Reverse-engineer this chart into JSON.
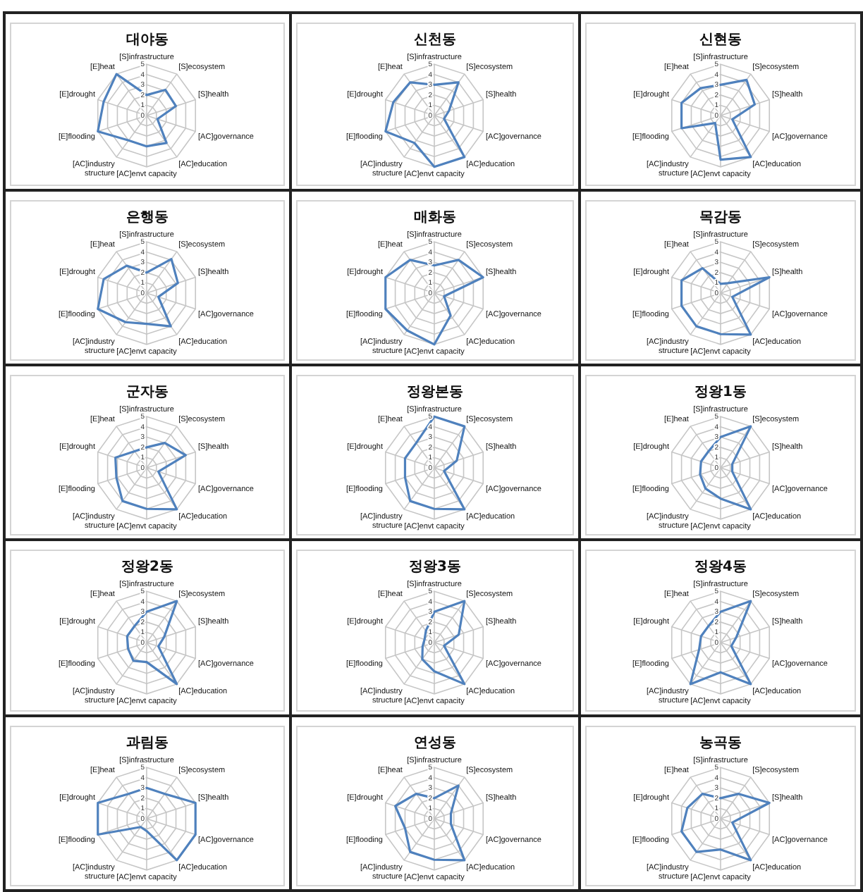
{
  "chart_data": [
    {
      "type": "radar",
      "title": "대야동",
      "categories": [
        "[S]infrastructure",
        "[S]ecosystem",
        "[S]health",
        "[AC]governance",
        "[AC]education",
        "[AC]envt capacity",
        "[AC]industry structure",
        "[E]flooding",
        "[E]drought",
        "[E]heat"
      ],
      "series": [
        {
          "color": "#4f81bd",
          "values": [
            2,
            3.1,
            3,
            1.1,
            3.3,
            3,
            3,
            5,
            4.4,
            5
          ]
        }
      ],
      "ylim": [
        0,
        5
      ],
      "yticks": [
        0,
        1,
        2,
        3,
        4,
        5
      ],
      "grid": true,
      "marker": "none"
    },
    {
      "type": "radar",
      "title": "신천동",
      "categories": [
        "[S]infrastructure",
        "[S]ecosystem",
        "[S]health",
        "[AC]governance",
        "[AC]education",
        "[AC]envt capacity",
        "[AC]industry structure",
        "[E]flooding",
        "[E]drought",
        "[E]heat"
      ],
      "series": [
        {
          "color": "#4f81bd",
          "values": [
            3,
            4,
            1.5,
            1,
            5,
            5,
            3.3,
            5,
            4.2,
            4
          ]
        }
      ],
      "ylim": [
        0,
        5
      ],
      "yticks": [
        0,
        1,
        2,
        3,
        4,
        5
      ],
      "grid": true,
      "marker": "none"
    },
    {
      "type": "radar",
      "title": "신현동",
      "categories": [
        "[S]infrastructure",
        "[S]ecosystem",
        "[S]health",
        "[AC]governance",
        "[AC]education",
        "[AC]envt capacity",
        "[AC]industry structure",
        "[E]flooding",
        "[E]drought",
        "[E]heat"
      ],
      "series": [
        {
          "color": "#4f81bd",
          "values": [
            3,
            4.3,
            3.5,
            1.2,
            5,
            4.3,
            0.9,
            4,
            4,
            3.3
          ]
        }
      ],
      "ylim": [
        0,
        5
      ],
      "yticks": [
        0,
        1,
        2,
        3,
        4,
        5
      ],
      "grid": true,
      "marker": "none"
    },
    {
      "type": "radar",
      "title": "은행동",
      "categories": [
        "[S]infrastructure",
        "[S]ecosystem",
        "[S]health",
        "[AC]governance",
        "[AC]education",
        "[AC]envt capacity",
        "[AC]industry structure",
        "[E]flooding",
        "[E]drought",
        "[E]heat"
      ],
      "series": [
        {
          "color": "#4f81bd",
          "values": [
            2,
            4.1,
            3.2,
            1.2,
            4,
            3,
            3.5,
            5,
            4.4,
            3.3
          ]
        }
      ],
      "ylim": [
        0,
        5
      ],
      "yticks": [
        0,
        1,
        2,
        3,
        4,
        5
      ],
      "grid": true,
      "marker": "none"
    },
    {
      "type": "radar",
      "title": "매화동",
      "categories": [
        "[S]infrastructure",
        "[S]ecosystem",
        "[S]health",
        "[AC]governance",
        "[AC]education",
        "[AC]envt capacity",
        "[AC]industry structure",
        "[E]flooding",
        "[E]drought",
        "[E]heat"
      ],
      "series": [
        {
          "color": "#4f81bd",
          "values": [
            2.7,
            4,
            5,
            1,
            2.7,
            5,
            4.5,
            5,
            5,
            4
          ]
        }
      ],
      "ylim": [
        0,
        5
      ],
      "yticks": [
        0,
        1,
        2,
        3,
        4,
        5
      ],
      "grid": true,
      "marker": "none"
    },
    {
      "type": "radar",
      "title": "목감동",
      "categories": [
        "[S]infrastructure",
        "[S]ecosystem",
        "[S]health",
        "[AC]governance",
        "[AC]education",
        "[AC]envt capacity",
        "[AC]industry structure",
        "[E]flooding",
        "[E]drought",
        "[E]heat"
      ],
      "series": [
        {
          "color": "#4f81bd",
          "values": [
            0.9,
            1.2,
            5,
            1.2,
            5,
            4,
            4,
            4,
            4,
            3
          ]
        }
      ],
      "ylim": [
        0,
        5
      ],
      "yticks": [
        0,
        1,
        2,
        3,
        4,
        5
      ],
      "grid": true,
      "marker": "none"
    },
    {
      "type": "radar",
      "title": "군자동",
      "categories": [
        "[S]infrastructure",
        "[S]ecosystem",
        "[S]health",
        "[AC]governance",
        "[AC]education",
        "[AC]envt capacity",
        "[AC]industry structure",
        "[E]flooding",
        "[E]drought",
        "[E]heat"
      ],
      "series": [
        {
          "color": "#4f81bd",
          "values": [
            2,
            3,
            4,
            1.2,
            5,
            4,
            4,
            3.1,
            3.2,
            2
          ]
        }
      ],
      "ylim": [
        0,
        5
      ],
      "yticks": [
        0,
        1,
        2,
        3,
        4,
        5
      ],
      "grid": true,
      "marker": "none"
    },
    {
      "type": "radar",
      "title": "정왕본동",
      "categories": [
        "[S]infrastructure",
        "[S]ecosystem",
        "[S]health",
        "[AC]governance",
        "[AC]education",
        "[AC]envt capacity",
        "[AC]industry structure",
        "[E]flooding",
        "[E]drought",
        "[E]heat"
      ],
      "series": [
        {
          "color": "#4f81bd",
          "values": [
            5,
            5,
            2.3,
            1,
            5,
            4,
            4,
            3,
            3,
            3
          ]
        }
      ],
      "ylim": [
        0,
        5
      ],
      "yticks": [
        0,
        1,
        2,
        3,
        4,
        5
      ],
      "grid": true,
      "marker": "none"
    },
    {
      "type": "radar",
      "title": "정왕1동",
      "categories": [
        "[S]infrastructure",
        "[S]ecosystem",
        "[S]health",
        "[AC]governance",
        "[AC]education",
        "[AC]envt capacity",
        "[AC]industry structure",
        "[E]flooding",
        "[E]drought",
        "[E]heat"
      ],
      "series": [
        {
          "color": "#4f81bd",
          "values": [
            3,
            5,
            1.2,
            1.2,
            5,
            3,
            2.5,
            2.1,
            2,
            2
          ]
        }
      ],
      "ylim": [
        0,
        5
      ],
      "yticks": [
        0,
        1,
        2,
        3,
        4,
        5
      ],
      "grid": true,
      "marker": "none"
    },
    {
      "type": "radar",
      "title": "정왕2동",
      "categories": [
        "[S]infrastructure",
        "[S]ecosystem",
        "[S]health",
        "[AC]governance",
        "[AC]education",
        "[AC]envt capacity",
        "[AC]industry structure",
        "[E]flooding",
        "[E]drought",
        "[E]heat"
      ],
      "series": [
        {
          "color": "#4f81bd",
          "values": [
            3,
            5,
            1.8,
            1.2,
            5,
            1.9,
            2.2,
            1.9,
            2,
            2
          ]
        }
      ],
      "ylim": [
        0,
        5
      ],
      "yticks": [
        0,
        1,
        2,
        3,
        4,
        5
      ],
      "grid": true,
      "marker": "none"
    },
    {
      "type": "radar",
      "title": "정왕3동",
      "categories": [
        "[S]infrastructure",
        "[S]ecosystem",
        "[S]health",
        "[AC]governance",
        "[AC]education",
        "[AC]envt capacity",
        "[AC]industry structure",
        "[E]flooding",
        "[E]drought",
        "[E]heat"
      ],
      "series": [
        {
          "color": "#4f81bd",
          "values": [
            3,
            5,
            2.5,
            1,
            5,
            2.8,
            2,
            1.2,
            1,
            1.4
          ]
        }
      ],
      "ylim": [
        0,
        5
      ],
      "yticks": [
        0,
        1,
        2,
        3,
        4,
        5
      ],
      "grid": true,
      "marker": "none"
    },
    {
      "type": "radar",
      "title": "정왕4동",
      "categories": [
        "[S]infrastructure",
        "[S]ecosystem",
        "[S]health",
        "[AC]governance",
        "[AC]education",
        "[AC]envt capacity",
        "[AC]industry structure",
        "[E]flooding",
        "[E]drought",
        "[E]heat"
      ],
      "series": [
        {
          "color": "#4f81bd",
          "values": [
            3,
            5,
            1.6,
            1.1,
            5,
            2.9,
            5,
            2.2,
            2,
            2
          ]
        }
      ],
      "ylim": [
        0,
        5
      ],
      "yticks": [
        0,
        1,
        2,
        3,
        4,
        5
      ],
      "grid": true,
      "marker": "none"
    },
    {
      "type": "radar",
      "title": "과림동",
      "categories": [
        "[S]infrastructure",
        "[S]ecosystem",
        "[S]health",
        "[AC]governance",
        "[AC]education",
        "[AC]envt capacity",
        "[AC]industry structure",
        "[E]flooding",
        "[E]drought",
        "[E]heat"
      ],
      "series": [
        {
          "color": "#4f81bd",
          "values": [
            3,
            3,
            5,
            5,
            5,
            1.2,
            1,
            5,
            5,
            3
          ]
        }
      ],
      "ylim": [
        0,
        5
      ],
      "yticks": [
        0,
        1,
        2,
        3,
        4,
        5
      ],
      "grid": true,
      "marker": "none"
    },
    {
      "type": "radar",
      "title": "연성동",
      "categories": [
        "[S]infrastructure",
        "[S]ecosystem",
        "[S]health",
        "[AC]governance",
        "[AC]education",
        "[AC]envt capacity",
        "[AC]industry structure",
        "[E]flooding",
        "[E]drought",
        "[E]heat"
      ],
      "series": [
        {
          "color": "#4f81bd",
          "values": [
            2,
            4,
            1.7,
            1.7,
            5,
            4,
            4,
            3,
            4,
            3
          ]
        }
      ],
      "ylim": [
        0,
        5
      ],
      "yticks": [
        0,
        1,
        2,
        3,
        4,
        5
      ],
      "grid": true,
      "marker": "none"
    },
    {
      "type": "radar",
      "title": "농곡동",
      "categories": [
        "[S]infrastructure",
        "[S]ecosystem",
        "[S]health",
        "[AC]governance",
        "[AC]education",
        "[AC]envt capacity",
        "[AC]industry structure",
        "[E]flooding",
        "[E]drought",
        "[E]heat"
      ],
      "series": [
        {
          "color": "#4f81bd",
          "values": [
            2,
            3,
            5,
            1.2,
            5,
            3,
            4,
            4,
            3.4,
            3
          ]
        }
      ],
      "ylim": [
        0,
        5
      ],
      "yticks": [
        0,
        1,
        2,
        3,
        4,
        5
      ],
      "grid": true,
      "marker": "none"
    }
  ]
}
